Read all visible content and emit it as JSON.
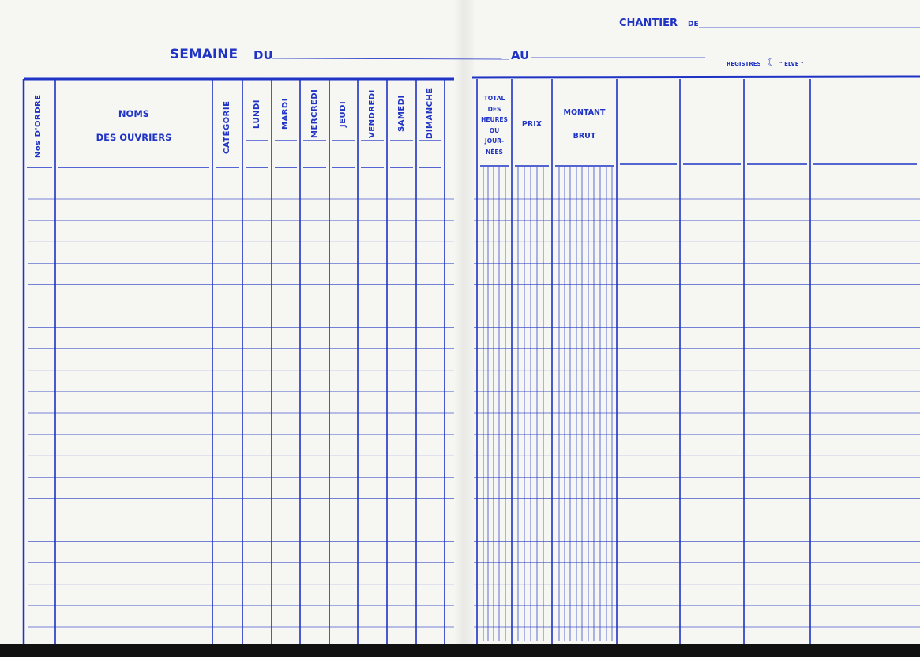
{
  "header": {
    "chantier_label": "CHANTIER",
    "chantier_de": "DE",
    "semaine_label": "SEMAINE",
    "du_label": "DU",
    "au_label": "AU",
    "registres_label": "REGISTRES",
    "brand": "\" ELVE \""
  },
  "left_columns": {
    "ordre": "Nos D'ORDRE",
    "noms_1": "NOMS",
    "noms_2": "DES OUVRIERS",
    "categorie": "CATÉGORIE",
    "days": [
      "LUNDI",
      "MARDI",
      "MERCREDI",
      "JEUDI",
      "VENDREDI",
      "SAMEDI",
      "DIMANCHE"
    ]
  },
  "right_columns": {
    "total": [
      "TOTAL",
      "DES",
      "HEURES",
      "OU",
      "JOUR-",
      "NÉES"
    ],
    "prix": "PRIX",
    "montant_1": "MONTANT",
    "montant_2": "BRUT"
  },
  "colors": {
    "ink": "#1f33c4",
    "paper": "#f6f6f3"
  }
}
